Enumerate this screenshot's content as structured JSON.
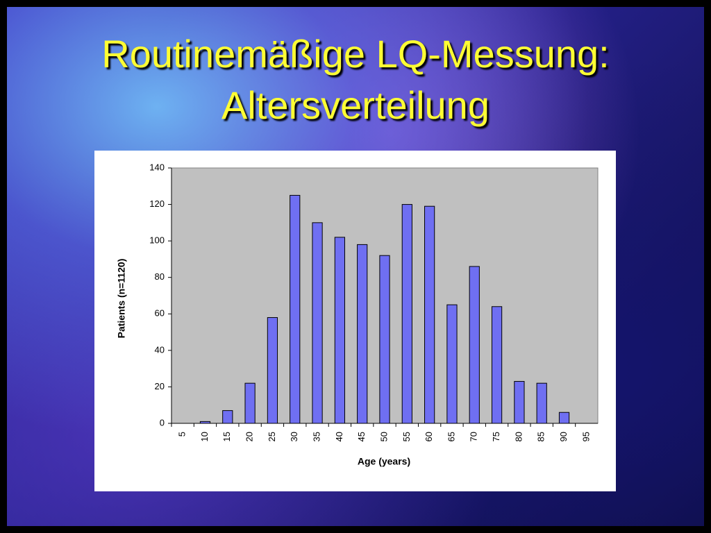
{
  "chart_data": {
    "type": "bar",
    "title": [
      "Routinemäßige LQ-Messung:",
      "Altersverteilung"
    ],
    "x_label": "Age (years)",
    "y_label": "Patients (n=1120)",
    "categories": [
      "5",
      "10",
      "15",
      "20",
      "25",
      "30",
      "35",
      "40",
      "45",
      "50",
      "55",
      "60",
      "65",
      "70",
      "75",
      "80",
      "85",
      "90",
      "95"
    ],
    "values": [
      0,
      1,
      7,
      22,
      58,
      125,
      110,
      102,
      98,
      92,
      120,
      119,
      65,
      86,
      64,
      23,
      22,
      6,
      0
    ],
    "color": "#6f6ff2",
    "ylim": [
      0,
      140
    ],
    "yticks": [
      0,
      20,
      40,
      60,
      80,
      100,
      120,
      140
    ],
    "grid": false
  }
}
